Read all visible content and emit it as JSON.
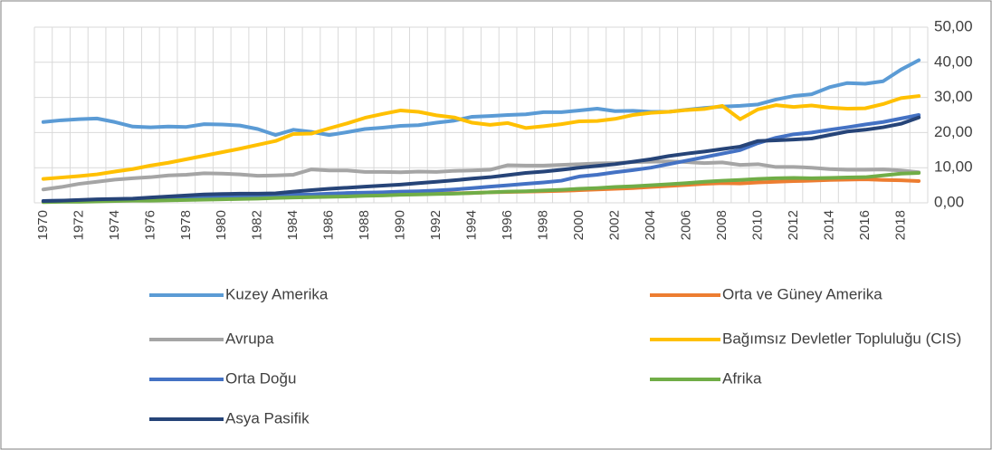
{
  "chart_data": {
    "type": "line",
    "categories": [
      "1970",
      null,
      "1972",
      null,
      "1974",
      null,
      "1976",
      null,
      "1978",
      null,
      "1980",
      null,
      "1982",
      null,
      "1984",
      null,
      "1986",
      null,
      "1988",
      null,
      "1990",
      null,
      "1992",
      null,
      "1994",
      null,
      "1996",
      null,
      "1998",
      null,
      "2000",
      null,
      "2002",
      null,
      "2004",
      null,
      "2006",
      null,
      "2008",
      null,
      "2010",
      null,
      "2012",
      null,
      "2014",
      null,
      "2016",
      null,
      "2018",
      null
    ],
    "series": [
      {
        "name": "Kuzey Amerika",
        "color": "#5b9bd5",
        "values": [
          23,
          23.5,
          23.8,
          24,
          23,
          21.7,
          21.5,
          21.7,
          21.6,
          22.4,
          22.3,
          22.0,
          21.0,
          19.3,
          20.8,
          20.2,
          19.3,
          20.1,
          21.0,
          21.4,
          21.9,
          22.1,
          22.8,
          23.4,
          24.5,
          24.7,
          25.0,
          25.2,
          25.8,
          25.8,
          26.3,
          26.8,
          26.1,
          26.2,
          25.9,
          25.9,
          26.5,
          27.0,
          27.4,
          27.6,
          28.0,
          29.4,
          30.4,
          30.9,
          32.9,
          34.1,
          33.9,
          34.6,
          37.9,
          40.6
        ]
      },
      {
        "name": "Orta ve Güney Amerika",
        "color": "#ed7d31",
        "values": [
          0.3,
          0.4,
          0.5,
          0.6,
          0.7,
          0.8,
          0.9,
          1.0,
          1.1,
          1.3,
          1.4,
          1.5,
          1.6,
          1.7,
          1.8,
          1.9,
          2.0,
          2.1,
          2.2,
          2.3,
          2.4,
          2.5,
          2.6,
          2.7,
          2.8,
          3.0,
          3.1,
          3.2,
          3.3,
          3.4,
          3.6,
          3.8,
          4.0,
          4.2,
          4.5,
          4.8,
          5.1,
          5.4,
          5.6,
          5.5,
          5.8,
          6.0,
          6.2,
          6.3,
          6.5,
          6.6,
          6.7,
          6.5,
          6.4,
          6.2
        ]
      },
      {
        "name": "Avrupa",
        "color": "#a5a5a5",
        "values": [
          3.8,
          4.5,
          5.4,
          6.0,
          6.6,
          7.0,
          7.3,
          7.8,
          8.0,
          8.4,
          8.3,
          8.1,
          7.7,
          7.8,
          8.0,
          9.5,
          9.2,
          9.2,
          8.8,
          8.8,
          8.7,
          8.9,
          8.8,
          9.1,
          9.2,
          9.4,
          10.7,
          10.6,
          10.6,
          10.8,
          11.0,
          11.2,
          11.3,
          11.6,
          11.7,
          11.8,
          11.6,
          11.3,
          11.5,
          10.8,
          11.0,
          10.2,
          10.2,
          10.0,
          9.6,
          9.4,
          9.4,
          9.5,
          9.2,
          8.7
        ]
      },
      {
        "name": "Bağımsız Devletler Topluluğu (CIS)",
        "color": "#ffc000",
        "values": [
          6.8,
          7.2,
          7.6,
          8.1,
          8.9,
          9.6,
          10.6,
          11.4,
          12.4,
          13.4,
          14.4,
          15.4,
          16.5,
          17.6,
          19.6,
          19.7,
          21.2,
          22.6,
          24.2,
          25.3,
          26.3,
          25.9,
          24.9,
          24.3,
          22.8,
          22.2,
          22.7,
          21.3,
          21.8,
          22.4,
          23.2,
          23.3,
          23.9,
          25.0,
          25.6,
          25.9,
          26.4,
          26.7,
          27.6,
          23.8,
          26.6,
          27.8,
          27.3,
          27.7,
          27.1,
          26.8,
          26.9,
          28.1,
          29.8,
          30.4
        ]
      },
      {
        "name": "Orta Doğu",
        "color": "#4472c4",
        "values": [
          0.5,
          0.6,
          0.7,
          0.8,
          0.9,
          1.0,
          1.1,
          1.3,
          1.5,
          1.7,
          1.8,
          1.9,
          2.0,
          2.1,
          2.3,
          2.4,
          2.6,
          2.8,
          2.9,
          3.0,
          3.2,
          3.3,
          3.5,
          3.8,
          4.2,
          4.6,
          5.0,
          5.4,
          5.8,
          6.3,
          7.5,
          8.0,
          8.7,
          9.3,
          10.0,
          11.0,
          12.0,
          13.0,
          14.0,
          15.0,
          17.0,
          18.5,
          19.5,
          20.0,
          20.8,
          21.5,
          22.3,
          23.0,
          24.0,
          25.0
        ]
      },
      {
        "name": "Afrika",
        "color": "#70ad47",
        "values": [
          0.2,
          0.3,
          0.3,
          0.4,
          0.5,
          0.6,
          0.6,
          0.7,
          0.8,
          0.9,
          1.0,
          1.1,
          1.2,
          1.4,
          1.5,
          1.6,
          1.7,
          1.8,
          2.0,
          2.1,
          2.3,
          2.4,
          2.5,
          2.6,
          2.8,
          3.0,
          3.2,
          3.3,
          3.5,
          3.7,
          4.0,
          4.2,
          4.5,
          4.7,
          5.0,
          5.3,
          5.6,
          6.0,
          6.3,
          6.5,
          6.8,
          7.0,
          7.1,
          7.0,
          7.1,
          7.2,
          7.3,
          7.8,
          8.3,
          8.5
        ]
      },
      {
        "name": "Asya Pasifik",
        "color": "#264478",
        "values": [
          0.5,
          0.6,
          0.8,
          1.0,
          1.1,
          1.2,
          1.5,
          1.8,
          2.1,
          2.4,
          2.5,
          2.6,
          2.6,
          2.7,
          3.2,
          3.6,
          4.0,
          4.3,
          4.6,
          4.9,
          5.2,
          5.6,
          6.0,
          6.4,
          6.9,
          7.3,
          7.9,
          8.5,
          8.9,
          9.4,
          10.0,
          10.5,
          11.0,
          11.7,
          12.4,
          13.3,
          14.0,
          14.6,
          15.3,
          16.0,
          17.6,
          17.8,
          18.0,
          18.3,
          19.3,
          20.3,
          20.8,
          21.5,
          22.5,
          24.3
        ]
      }
    ],
    "ylim": [
      0,
      50
    ],
    "yticks": [
      {
        "value": 0,
        "label": "0,00"
      },
      {
        "value": 10,
        "label": "10,00"
      },
      {
        "value": 20,
        "label": "20,00"
      },
      {
        "value": 30,
        "label": "30,00"
      },
      {
        "value": 40,
        "label": "40,00"
      },
      {
        "value": 50,
        "label": "50,00"
      }
    ],
    "y_axis_side": "right",
    "grid": true,
    "legend": "bottom"
  }
}
